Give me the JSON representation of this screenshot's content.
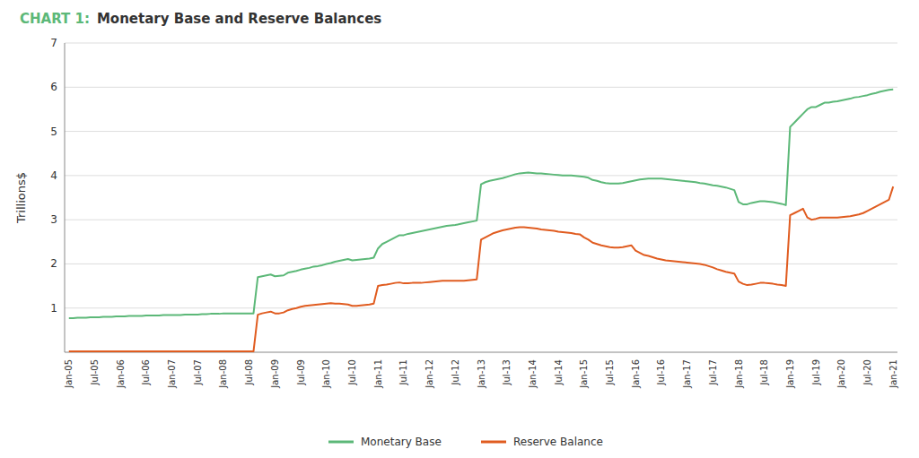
{
  "chart_data": {
    "type": "line",
    "title": "CHART 1:",
    "subtitle": "Monetary Base and Reserve Balances",
    "y_label": "Trillions$",
    "ylim": [
      0,
      7
    ],
    "yticks": [
      1,
      2,
      3,
      4,
      5,
      6,
      7
    ],
    "grid": true,
    "legend": "bottom",
    "categories": [
      "Jan-05",
      null,
      null,
      null,
      null,
      null,
      "Jul-05",
      null,
      null,
      null,
      null,
      null,
      "Jan-06",
      null,
      null,
      null,
      null,
      null,
      "Jul-06",
      null,
      null,
      null,
      null,
      null,
      "Jan-07",
      null,
      null,
      null,
      null,
      null,
      "Jul-07",
      null,
      null,
      null,
      null,
      null,
      "Jan-08",
      null,
      null,
      null,
      null,
      null,
      "Jul-08",
      null,
      null,
      null,
      null,
      null,
      "Jan-09",
      null,
      null,
      null,
      null,
      null,
      "Jul-09",
      null,
      null,
      null,
      null,
      null,
      "Jan-10",
      null,
      null,
      null,
      null,
      null,
      "Jul-10",
      null,
      null,
      null,
      null,
      null,
      "Jan-11",
      null,
      null,
      null,
      null,
      null,
      "Jul-11",
      null,
      null,
      null,
      null,
      null,
      "Jan-12",
      null,
      null,
      null,
      null,
      null,
      "Jul-12",
      null,
      null,
      null,
      null,
      null,
      "Jan-13",
      null,
      null,
      null,
      null,
      null,
      "Jul-13",
      null,
      null,
      null,
      null,
      null,
      "Jan-14",
      null,
      null,
      null,
      null,
      null,
      "Jul-14",
      null,
      null,
      null,
      null,
      null,
      "Jan-15",
      null,
      null,
      null,
      null,
      null,
      "Jul-15",
      null,
      null,
      null,
      null,
      null,
      "Jan-16",
      null,
      null,
      null,
      null,
      null,
      "Jul-16",
      null,
      null,
      null,
      null,
      null,
      "Jan-17",
      null,
      null,
      null,
      null,
      null,
      "Jul-17",
      null,
      null,
      null,
      null,
      null,
      "Jan-18",
      null,
      null,
      null,
      null,
      null,
      "Jul-18",
      null,
      null,
      null,
      null,
      null,
      "Jan-19",
      null,
      null,
      null,
      null,
      null,
      "Jul-19",
      null,
      null,
      null,
      null,
      null,
      "Jan-20",
      null,
      null,
      null,
      null,
      null,
      "Jul-20",
      null,
      null,
      null,
      null,
      null,
      "Jan-21"
    ],
    "series": [
      {
        "name": "Monetary Base",
        "color": "#5cb878",
        "values": [
          0.77,
          0.77,
          0.78,
          0.78,
          0.78,
          0.79,
          0.79,
          0.79,
          0.8,
          0.8,
          0.8,
          0.81,
          0.81,
          0.81,
          0.82,
          0.82,
          0.82,
          0.82,
          0.83,
          0.83,
          0.83,
          0.83,
          0.84,
          0.84,
          0.84,
          0.84,
          0.84,
          0.85,
          0.85,
          0.85,
          0.85,
          0.86,
          0.86,
          0.87,
          0.87,
          0.87,
          0.88,
          0.88,
          0.88,
          0.88,
          0.88,
          0.88,
          0.88,
          0.88,
          1.7,
          1.72,
          1.74,
          1.76,
          1.72,
          1.73,
          1.74,
          1.8,
          1.82,
          1.84,
          1.87,
          1.89,
          1.91,
          1.94,
          1.95,
          1.97,
          2.0,
          2.02,
          2.05,
          2.07,
          2.09,
          2.11,
          2.08,
          2.09,
          2.1,
          2.11,
          2.12,
          2.14,
          2.35,
          2.45,
          2.5,
          2.55,
          2.6,
          2.65,
          2.65,
          2.68,
          2.7,
          2.72,
          2.74,
          2.76,
          2.78,
          2.8,
          2.82,
          2.84,
          2.86,
          2.87,
          2.88,
          2.9,
          2.92,
          2.94,
          2.96,
          2.98,
          3.8,
          3.85,
          3.88,
          3.9,
          3.92,
          3.94,
          3.97,
          4.0,
          4.03,
          4.05,
          4.06,
          4.07,
          4.06,
          4.05,
          4.05,
          4.04,
          4.03,
          4.02,
          4.01,
          4.0,
          4.0,
          4.0,
          3.99,
          3.98,
          3.97,
          3.95,
          3.9,
          3.88,
          3.85,
          3.83,
          3.82,
          3.82,
          3.82,
          3.83,
          3.85,
          3.87,
          3.89,
          3.91,
          3.92,
          3.93,
          3.93,
          3.93,
          3.93,
          3.92,
          3.91,
          3.9,
          3.89,
          3.88,
          3.87,
          3.86,
          3.85,
          3.83,
          3.82,
          3.8,
          3.78,
          3.77,
          3.75,
          3.73,
          3.7,
          3.67,
          3.4,
          3.35,
          3.35,
          3.38,
          3.4,
          3.42,
          3.42,
          3.41,
          3.4,
          3.38,
          3.36,
          3.33,
          5.1,
          5.2,
          5.3,
          5.4,
          5.5,
          5.55,
          5.55,
          5.6,
          5.65,
          5.65,
          5.67,
          5.68,
          5.7,
          5.72,
          5.74,
          5.77,
          5.78,
          5.8,
          5.82,
          5.85,
          5.87,
          5.9,
          5.92,
          5.94,
          5.95
        ]
      },
      {
        "name": "Reserve Balance",
        "color": "#e05c20",
        "values": [
          0.02,
          0.02,
          0.02,
          0.02,
          0.02,
          0.02,
          0.02,
          0.02,
          0.02,
          0.02,
          0.02,
          0.02,
          0.02,
          0.02,
          0.02,
          0.02,
          0.02,
          0.02,
          0.02,
          0.02,
          0.02,
          0.02,
          0.02,
          0.02,
          0.02,
          0.02,
          0.02,
          0.02,
          0.02,
          0.02,
          0.02,
          0.02,
          0.02,
          0.02,
          0.02,
          0.02,
          0.02,
          0.02,
          0.02,
          0.02,
          0.02,
          0.02,
          0.02,
          0.02,
          0.85,
          0.88,
          0.9,
          0.92,
          0.88,
          0.88,
          0.9,
          0.95,
          0.98,
          1.0,
          1.03,
          1.05,
          1.06,
          1.07,
          1.08,
          1.09,
          1.1,
          1.11,
          1.1,
          1.1,
          1.09,
          1.08,
          1.05,
          1.05,
          1.06,
          1.07,
          1.08,
          1.1,
          1.5,
          1.52,
          1.53,
          1.55,
          1.57,
          1.58,
          1.56,
          1.56,
          1.57,
          1.57,
          1.57,
          1.58,
          1.59,
          1.6,
          1.61,
          1.62,
          1.62,
          1.62,
          1.62,
          1.62,
          1.62,
          1.63,
          1.64,
          1.65,
          2.55,
          2.6,
          2.65,
          2.7,
          2.73,
          2.76,
          2.78,
          2.8,
          2.82,
          2.83,
          2.83,
          2.82,
          2.81,
          2.8,
          2.78,
          2.77,
          2.76,
          2.75,
          2.73,
          2.72,
          2.71,
          2.7,
          2.68,
          2.67,
          2.6,
          2.55,
          2.48,
          2.45,
          2.42,
          2.4,
          2.38,
          2.37,
          2.37,
          2.38,
          2.4,
          2.42,
          2.3,
          2.25,
          2.2,
          2.18,
          2.15,
          2.12,
          2.1,
          2.08,
          2.07,
          2.06,
          2.05,
          2.04,
          2.03,
          2.02,
          2.01,
          2.0,
          1.98,
          1.95,
          1.92,
          1.88,
          1.85,
          1.82,
          1.8,
          1.78,
          1.6,
          1.55,
          1.52,
          1.53,
          1.55,
          1.57,
          1.57,
          1.56,
          1.55,
          1.53,
          1.52,
          1.5,
          3.1,
          3.15,
          3.2,
          3.25,
          3.05,
          3.0,
          3.02,
          3.05,
          3.05,
          3.05,
          3.05,
          3.05,
          3.06,
          3.07,
          3.08,
          3.1,
          3.12,
          3.15,
          3.2,
          3.25,
          3.3,
          3.35,
          3.4,
          3.45,
          3.75
        ]
      }
    ]
  }
}
